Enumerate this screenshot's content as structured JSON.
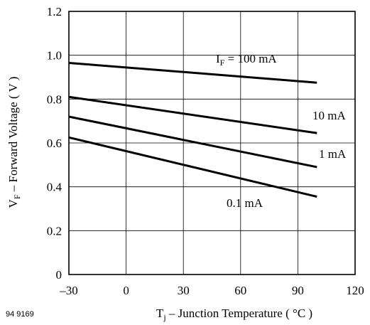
{
  "figure_id": "94 9169",
  "chart_data": {
    "type": "line",
    "title": "",
    "xlabel": {
      "main": "T",
      "sub": "j",
      "rest": " – Junction Temperature ( °C )"
    },
    "ylabel": {
      "main": "V",
      "sub": "F",
      "rest": " – Forward Voltage ( V )"
    },
    "xlim": [
      -30,
      120
    ],
    "ylim": [
      0,
      1.2
    ],
    "x_ticks": [
      -30,
      0,
      30,
      60,
      90,
      120
    ],
    "x_tick_labels": [
      "–30",
      "0",
      "30",
      "60",
      "90",
      "120"
    ],
    "y_ticks": [
      0,
      0.2,
      0.4,
      0.6,
      0.8,
      1.0,
      1.2
    ],
    "y_tick_labels": [
      "0",
      "0.2",
      "0.4",
      "0.6",
      "0.8",
      "1.0",
      "1.2"
    ],
    "grid": true,
    "series": [
      {
        "name": "I_F = 100 mA",
        "label_main": "I",
        "label_sub": "F",
        "label_rest": " = 100 mA",
        "x": [
          -30,
          100
        ],
        "y": [
          0.965,
          0.875
        ]
      },
      {
        "name": "10 mA",
        "label_main": "10 mA",
        "x": [
          -30,
          100
        ],
        "y": [
          0.81,
          0.645
        ]
      },
      {
        "name": "1 mA",
        "label_main": "1 mA",
        "x": [
          -30,
          100
        ],
        "y": [
          0.72,
          0.49
        ]
      },
      {
        "name": "0.1 mA",
        "label_main": "0.1 mA",
        "x": [
          -30,
          100
        ],
        "y": [
          0.625,
          0.355
        ]
      }
    ]
  }
}
